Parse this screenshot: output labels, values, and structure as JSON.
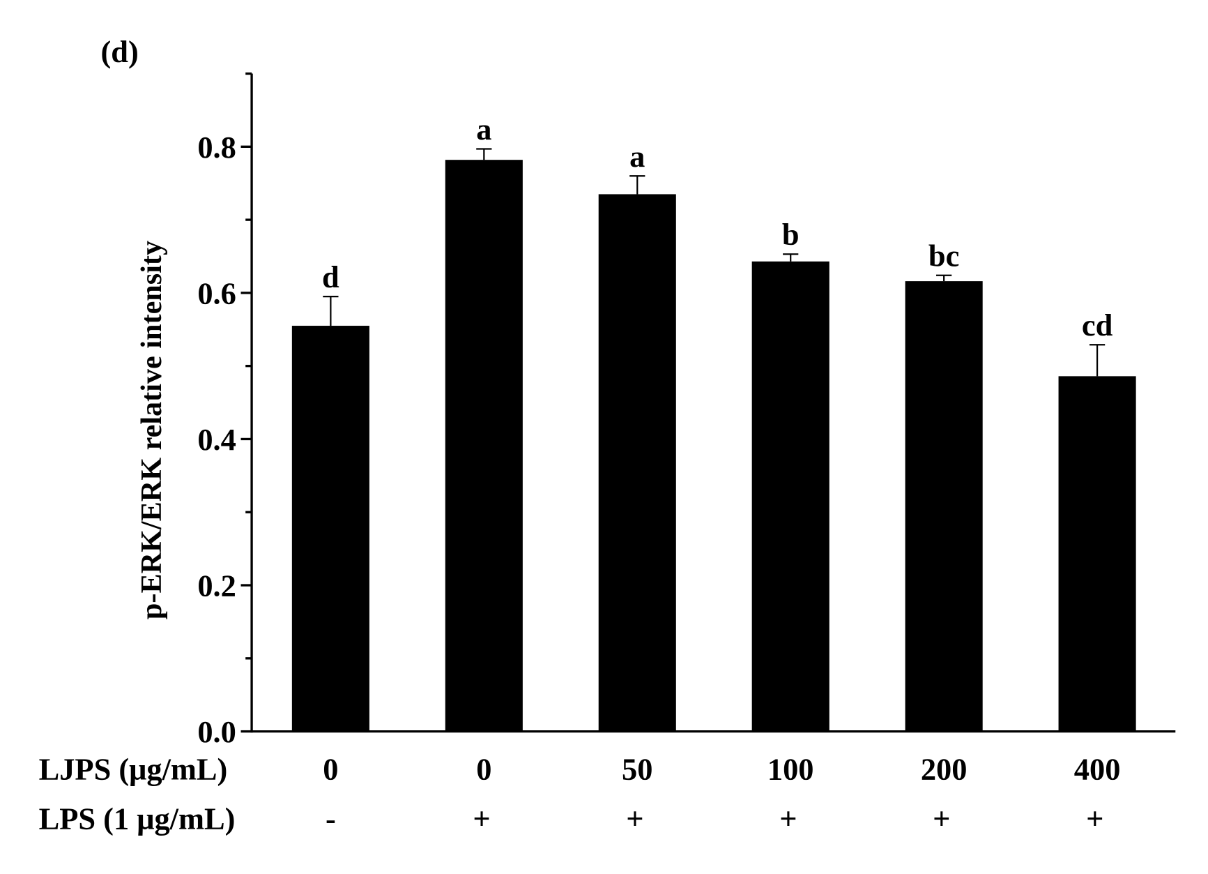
{
  "chart_data": {
    "type": "bar",
    "panel_label": "(d)",
    "y_label": "p-ERK/ERK relative intensity",
    "row_labels": [
      "LJPS (μg/mL)",
      "LPS (1 μg/mL)"
    ],
    "categories": [
      "0",
      "0",
      "50",
      "100",
      "200",
      "400"
    ],
    "lps": [
      "-",
      "+",
      "+",
      "+",
      "+",
      "+"
    ],
    "series": [
      {
        "color": "#000000",
        "values": [
          0.555,
          0.782,
          0.735,
          0.643,
          0.616,
          0.486
        ],
        "errors": [
          0.04,
          0.015,
          0.025,
          0.01,
          0.008,
          0.043
        ],
        "letters": [
          "d",
          "a",
          "a",
          "b",
          "bc",
          "cd"
        ]
      }
    ],
    "ylim": [
      0,
      0.9
    ],
    "yticks": [
      {
        "value": 0,
        "label": "0.0"
      },
      0.2,
      0.4,
      0.6,
      0.8
    ],
    "yminorticks": [
      0.1,
      0.3,
      0.5,
      0.7,
      0.9
    ]
  }
}
